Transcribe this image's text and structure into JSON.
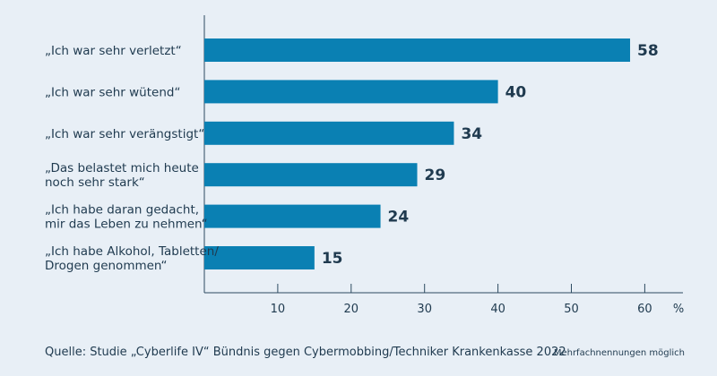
{
  "chart_data": {
    "type": "bar",
    "orientation": "horizontal",
    "categories": [
      [
        "„Ich war sehr verletzt“"
      ],
      [
        "„Ich war sehr wütend“"
      ],
      [
        "„Ich war sehr verängstigt“"
      ],
      [
        "„Das belastet mich heute",
        "noch sehr stark“"
      ],
      [
        "„Ich habe daran gedacht,",
        "mir das Leben zu nehmen“"
      ],
      [
        "„Ich habe Alkohol, Tabletten/",
        "Drogen genommen“"
      ]
    ],
    "values": [
      58,
      40,
      34,
      29,
      24,
      15
    ],
    "xlim": [
      0,
      65
    ],
    "xticks": [
      10,
      20,
      30,
      40,
      50,
      60
    ],
    "x_unit": "%",
    "bar_color": "#0a80b3",
    "grid": false
  },
  "footer": {
    "source": "Quelle: Studie „Cyberlife IV“ Bündnis gegen Cybermobbing/Techniker Krankenkasse 2022",
    "note": "Mehrfachnennungen möglich"
  }
}
